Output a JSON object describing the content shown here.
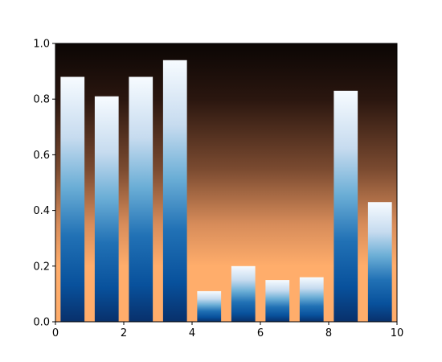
{
  "chart_data": {
    "type": "bar",
    "title": "",
    "xlabel": "",
    "ylabel": "",
    "xlim": [
      0,
      10
    ],
    "ylim": [
      0,
      1
    ],
    "x_ticks": [
      0,
      2,
      4,
      6,
      8,
      10
    ],
    "x_tick_labels": [
      "0",
      "2",
      "4",
      "6",
      "8",
      "10"
    ],
    "y_ticks": [
      0.0,
      0.2,
      0.4,
      0.6,
      0.8,
      1.0
    ],
    "y_tick_labels": [
      "0.0",
      "0.2",
      "0.4",
      "0.6",
      "0.8",
      "1.0"
    ],
    "bar_width": 0.7,
    "x": [
      0.15,
      1.15,
      2.15,
      3.15,
      4.15,
      5.15,
      6.15,
      7.15,
      8.15,
      9.15
    ],
    "values": [
      0.88,
      0.81,
      0.88,
      0.94,
      0.11,
      0.2,
      0.15,
      0.16,
      0.83,
      0.43
    ],
    "grid": false,
    "legend": "none",
    "background_gradient": {
      "top": "#0b0604",
      "bottom": "#ffad6b",
      "colormap": "copper"
    },
    "bar_gradient": {
      "top": "#f7fbff",
      "bottom": "#08306b",
      "colormap": "Blues"
    }
  }
}
